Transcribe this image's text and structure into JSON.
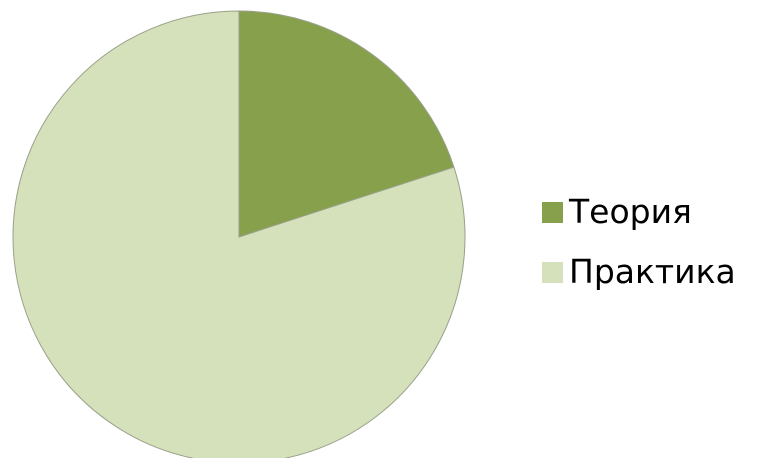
{
  "chart_data": {
    "type": "pie",
    "title": "",
    "start_angle_deg": 90,
    "direction": "clockwise",
    "slices": [
      {
        "label": "Теория",
        "value": 20,
        "color": "#86a04c"
      },
      {
        "label": "Практика",
        "value": 80,
        "color": "#d5e1bb"
      }
    ],
    "slice_border_color": "#9aa08a",
    "legend_position": "right"
  }
}
